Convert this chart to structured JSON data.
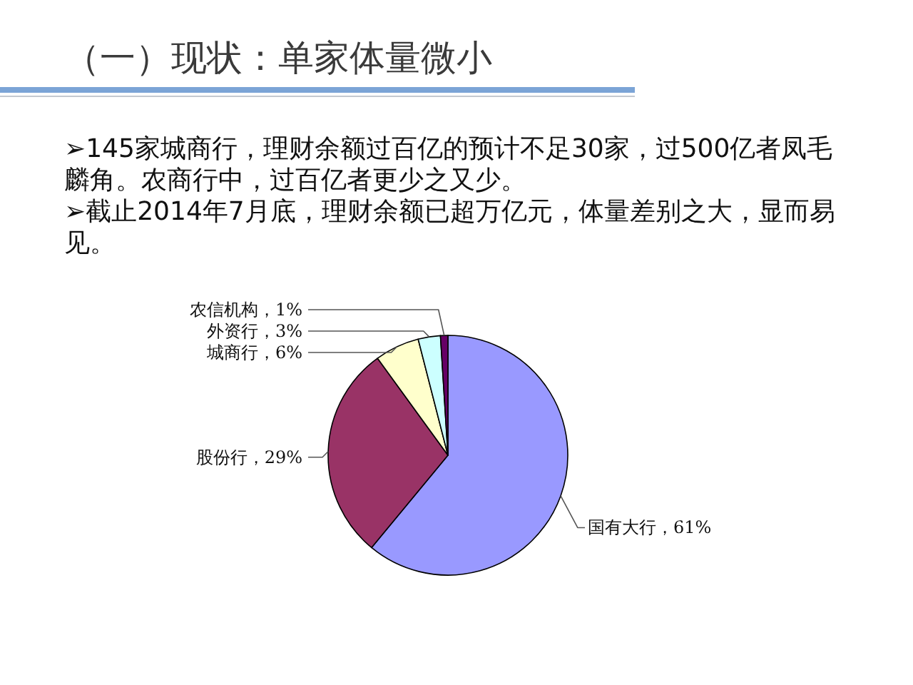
{
  "chart_data": {
    "type": "pie",
    "title": "（一）现状：单家体量微小",
    "annotations": [
      "➢145家城商行，理财余额过百亿的预计不足30家，过500亿者凤毛麟角。农商行中，过百亿者更少之又少。",
      "➢截止2014年7月底，理财余额已超万亿元，体量差别之大，显而易见。"
    ],
    "categories": [
      "国有大行",
      "股份行",
      "城商行",
      "外资行",
      "农信机构"
    ],
    "values": [
      61,
      29,
      6,
      3,
      1
    ],
    "colors": [
      "#9999ff",
      "#993366",
      "#ffffcc",
      "#ccffff",
      "#660066"
    ],
    "value_labels": [
      "61%",
      "29%",
      "6%",
      "3%",
      "1%"
    ]
  }
}
